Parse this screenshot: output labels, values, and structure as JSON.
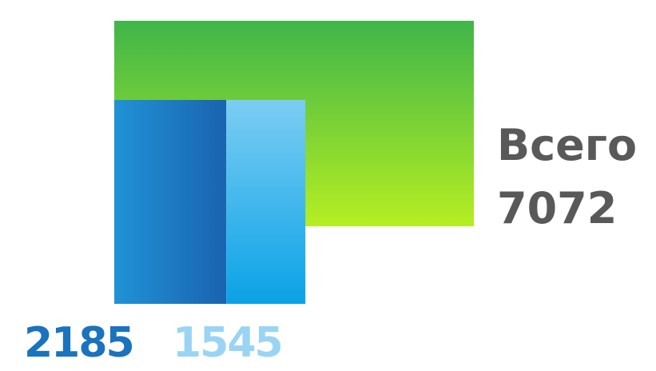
{
  "chart_data": {
    "type": "bar",
    "total": {
      "label": "Всего",
      "value": 7072
    },
    "series": [
      {
        "value": 2185,
        "color": "#1a73bd",
        "label_color": "#1a73bd"
      },
      {
        "value": 1545,
        "color": "#2aace6",
        "label_color": "#9ad4f4"
      }
    ],
    "total_color_top": "#3fb54a",
    "total_color_bottom": "#b5ee22",
    "text_color": "#595959"
  }
}
